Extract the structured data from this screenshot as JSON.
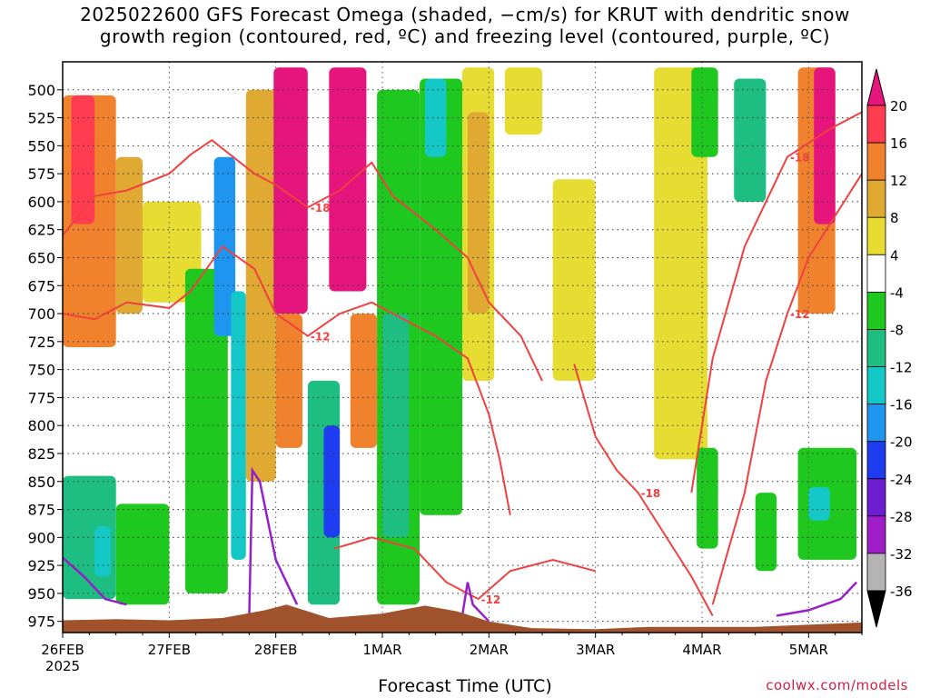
{
  "title_lines": [
    "2025022600 GFS Forecast Omega (shaded, −cm/s) for KRUT with dendritic snow",
    "growth region (contoured, red, ºC) and freezing level (contoured, purple, ºC)"
  ],
  "credit": "coolwx.com/models",
  "chart_data": {
    "type": "heatmap",
    "title": "2025022600 GFS Forecast Omega (shaded, −cm/s) for KRUT with dendritic snow growth region (contoured, red, ºC) and freezing level (contoured, purple, ºC)",
    "xlabel": "Forecast Time (UTC)",
    "ylabel": "",
    "x_ticks": [
      "26FEB",
      "27FEB",
      "28FEB",
      "1MAR",
      "2MAR",
      "3MAR",
      "4MAR",
      "5MAR"
    ],
    "x_tick_year": "2025",
    "xlim_days": [
      0,
      7.5
    ],
    "y_ticks": [
      500,
      525,
      550,
      575,
      600,
      625,
      650,
      675,
      700,
      725,
      750,
      775,
      800,
      825,
      850,
      875,
      900,
      925,
      950,
      975
    ],
    "ylim": [
      475,
      985
    ],
    "y_inverted": true,
    "grid": true,
    "colorbar": {
      "labels": [
        20,
        16,
        12,
        8,
        4,
        -4,
        -8,
        -12,
        -16,
        -20,
        -24,
        -28,
        -32,
        -36
      ],
      "bins": [
        {
          "range": [
            16,
            20
          ],
          "color": "#ff3c50"
        },
        {
          "range": [
            12,
            16
          ],
          "color": "#f0822d"
        },
        {
          "range": [
            8,
            12
          ],
          "color": "#e0aa32"
        },
        {
          "range": [
            4,
            8
          ],
          "color": "#e6dc32"
        },
        {
          "range": [
            -4,
            4
          ],
          "color": "#ffffff"
        },
        {
          "range": [
            -8,
            -4
          ],
          "color": "#1ec81e"
        },
        {
          "range": [
            -12,
            -8
          ],
          "color": "#1ebe82"
        },
        {
          "range": [
            -16,
            -12
          ],
          "color": "#14c8c8"
        },
        {
          "range": [
            -20,
            -16
          ],
          "color": "#1e96f0"
        },
        {
          "range": [
            -24,
            -20
          ],
          "color": "#1e3cf0"
        },
        {
          "range": [
            -28,
            -24
          ],
          "color": "#6e1ed2"
        },
        {
          "range": [
            -32,
            -28
          ],
          "color": "#a01ec8"
        },
        {
          "range": [
            -36,
            -32
          ],
          "color": "#b4b4b4"
        }
      ],
      "above_color": "#e6147d",
      "below_color": "#000000"
    },
    "omega_regions": [
      {
        "day": [
          0.0,
          0.5
        ],
        "p": [
          505,
          730
        ],
        "value": 14
      },
      {
        "day": [
          0.08,
          0.3
        ],
        "p": [
          505,
          620
        ],
        "value": 18
      },
      {
        "day": [
          0.5,
          0.75
        ],
        "p": [
          560,
          700
        ],
        "value": 10
      },
      {
        "day": [
          0.75,
          1.3
        ],
        "p": [
          600,
          690
        ],
        "value": 6
      },
      {
        "day": [
          0.0,
          0.5
        ],
        "p": [
          845,
          955
        ],
        "value": -10
      },
      {
        "day": [
          0.3,
          0.45
        ],
        "p": [
          890,
          935
        ],
        "value": -14
      },
      {
        "day": [
          0.5,
          1.0
        ],
        "p": [
          870,
          960
        ],
        "value": -6
      },
      {
        "day": [
          1.15,
          1.55
        ],
        "p": [
          660,
          950
        ],
        "value": -6
      },
      {
        "day": [
          1.42,
          1.62
        ],
        "p": [
          560,
          720
        ],
        "value": -18
      },
      {
        "day": [
          1.58,
          1.72
        ],
        "p": [
          680,
          920
        ],
        "value": -14
      },
      {
        "day": [
          1.72,
          2.0
        ],
        "p": [
          500,
          850
        ],
        "value": 10
      },
      {
        "day": [
          1.98,
          2.3
        ],
        "p": [
          480,
          700
        ],
        "value": 24
      },
      {
        "day": [
          2.0,
          2.25
        ],
        "p": [
          700,
          820
        ],
        "value": 14
      },
      {
        "day": [
          2.3,
          2.6
        ],
        "p": [
          760,
          960
        ],
        "value": -10
      },
      {
        "day": [
          2.45,
          2.6
        ],
        "p": [
          800,
          900
        ],
        "value": -22
      },
      {
        "day": [
          2.5,
          2.85
        ],
        "p": [
          480,
          680
        ],
        "value": 24
      },
      {
        "day": [
          2.7,
          2.95
        ],
        "p": [
          700,
          820
        ],
        "value": 14
      },
      {
        "day": [
          2.95,
          3.35
        ],
        "p": [
          500,
          960
        ],
        "value": -8
      },
      {
        "day": [
          3.0,
          3.25
        ],
        "p": [
          700,
          900
        ],
        "value": -12
      },
      {
        "day": [
          3.35,
          3.75
        ],
        "p": [
          490,
          880
        ],
        "value": -8
      },
      {
        "day": [
          3.4,
          3.6
        ],
        "p": [
          490,
          560
        ],
        "value": -14
      },
      {
        "day": [
          3.75,
          4.05
        ],
        "p": [
          480,
          760
        ],
        "value": 6
      },
      {
        "day": [
          3.8,
          4.0
        ],
        "p": [
          520,
          700
        ],
        "value": 11
      },
      {
        "day": [
          4.15,
          4.5
        ],
        "p": [
          480,
          540
        ],
        "value": 6
      },
      {
        "day": [
          4.6,
          5.0
        ],
        "p": [
          580,
          760
        ],
        "value": 6
      },
      {
        "day": [
          5.55,
          6.05
        ],
        "p": [
          480,
          830
        ],
        "value": 6
      },
      {
        "day": [
          5.9,
          6.15
        ],
        "p": [
          480,
          560
        ],
        "value": -8
      },
      {
        "day": [
          5.95,
          6.15
        ],
        "p": [
          820,
          910
        ],
        "value": -8
      },
      {
        "day": [
          6.3,
          6.6
        ],
        "p": [
          490,
          600
        ],
        "value": -10
      },
      {
        "day": [
          6.5,
          6.7
        ],
        "p": [
          860,
          930
        ],
        "value": -6
      },
      {
        "day": [
          6.9,
          7.25
        ],
        "p": [
          480,
          700
        ],
        "value": 12
      },
      {
        "day": [
          7.05,
          7.25
        ],
        "p": [
          480,
          620
        ],
        "value": 24
      },
      {
        "day": [
          6.9,
          7.45
        ],
        "p": [
          820,
          920
        ],
        "value": -8
      },
      {
        "day": [
          7.0,
          7.2
        ],
        "p": [
          855,
          885
        ],
        "value": -14
      }
    ],
    "dgz_contours": [
      {
        "label": "-18",
        "points": [
          [
            0.0,
            630
          ],
          [
            0.3,
            595
          ],
          [
            0.6,
            590
          ],
          [
            1.0,
            575
          ],
          [
            1.2,
            558
          ],
          [
            1.4,
            545
          ],
          [
            1.6,
            560
          ],
          [
            1.8,
            575
          ],
          [
            2.0,
            585
          ],
          [
            2.3,
            605
          ],
          [
            2.6,
            590
          ],
          [
            2.9,
            565
          ],
          [
            3.1,
            595
          ],
          [
            3.5,
            625
          ],
          [
            3.8,
            650
          ],
          [
            4.0,
            690
          ],
          [
            4.3,
            720
          ],
          [
            4.5,
            760
          ]
        ]
      },
      {
        "label": "-12",
        "points": [
          [
            0.0,
            700
          ],
          [
            0.3,
            705
          ],
          [
            0.6,
            690
          ],
          [
            1.0,
            695
          ],
          [
            1.2,
            680
          ],
          [
            1.5,
            640
          ],
          [
            1.8,
            660
          ],
          [
            2.0,
            700
          ],
          [
            2.3,
            720
          ],
          [
            2.6,
            700
          ],
          [
            2.9,
            690
          ],
          [
            3.1,
            700
          ],
          [
            3.5,
            720
          ],
          [
            3.8,
            740
          ],
          [
            4.0,
            790
          ],
          [
            4.1,
            830
          ],
          [
            4.2,
            880
          ]
        ]
      },
      {
        "label": "-12",
        "points": [
          [
            2.55,
            910
          ],
          [
            2.9,
            900
          ],
          [
            3.3,
            910
          ],
          [
            3.6,
            940
          ],
          [
            3.9,
            955
          ],
          [
            4.2,
            930
          ],
          [
            4.6,
            920
          ],
          [
            5.0,
            930
          ]
        ]
      },
      {
        "label": "-18",
        "points": [
          [
            4.8,
            745
          ],
          [
            5.0,
            810
          ],
          [
            5.2,
            840
          ],
          [
            5.4,
            860
          ],
          [
            5.6,
            890
          ],
          [
            5.9,
            935
          ],
          [
            6.1,
            970
          ]
        ]
      },
      {
        "label": "-18",
        "points": [
          [
            5.9,
            860
          ],
          [
            6.1,
            740
          ],
          [
            6.4,
            640
          ],
          [
            6.8,
            560
          ],
          [
            7.2,
            535
          ],
          [
            7.5,
            520
          ]
        ]
      },
      {
        "label": "-12",
        "points": [
          [
            6.1,
            960
          ],
          [
            6.4,
            860
          ],
          [
            6.6,
            760
          ],
          [
            6.8,
            700
          ],
          [
            7.0,
            650
          ],
          [
            7.2,
            620
          ],
          [
            7.5,
            575
          ]
        ]
      }
    ],
    "freezing_level_contours": [
      {
        "label": "0",
        "points": [
          [
            0.0,
            918
          ],
          [
            0.2,
            935
          ],
          [
            0.4,
            955
          ],
          [
            0.6,
            960
          ]
        ]
      },
      {
        "label": "0",
        "points": [
          [
            1.75,
            975
          ],
          [
            1.78,
            840
          ],
          [
            1.85,
            850
          ],
          [
            2.0,
            920
          ],
          [
            2.2,
            960
          ]
        ]
      },
      {
        "label": "0",
        "points": [
          [
            3.75,
            970
          ],
          [
            3.8,
            940
          ],
          [
            3.85,
            960
          ],
          [
            4.0,
            975
          ]
        ]
      },
      {
        "label": "0",
        "points": [
          [
            6.7,
            970
          ],
          [
            7.0,
            965
          ],
          [
            7.3,
            955
          ],
          [
            7.45,
            940
          ]
        ]
      }
    ],
    "terrain": {
      "color": "#a0522d",
      "points": [
        [
          0.0,
          974
        ],
        [
          0.5,
          973
        ],
        [
          1.0,
          974
        ],
        [
          1.5,
          972
        ],
        [
          1.9,
          965
        ],
        [
          2.1,
          960
        ],
        [
          2.5,
          972
        ],
        [
          3.0,
          968
        ],
        [
          3.4,
          961
        ],
        [
          3.7,
          966
        ],
        [
          4.0,
          975
        ],
        [
          4.4,
          981
        ],
        [
          5.0,
          982
        ],
        [
          5.5,
          980
        ],
        [
          6.0,
          980
        ],
        [
          6.5,
          980
        ],
        [
          7.0,
          978
        ],
        [
          7.5,
          976
        ]
      ]
    }
  }
}
